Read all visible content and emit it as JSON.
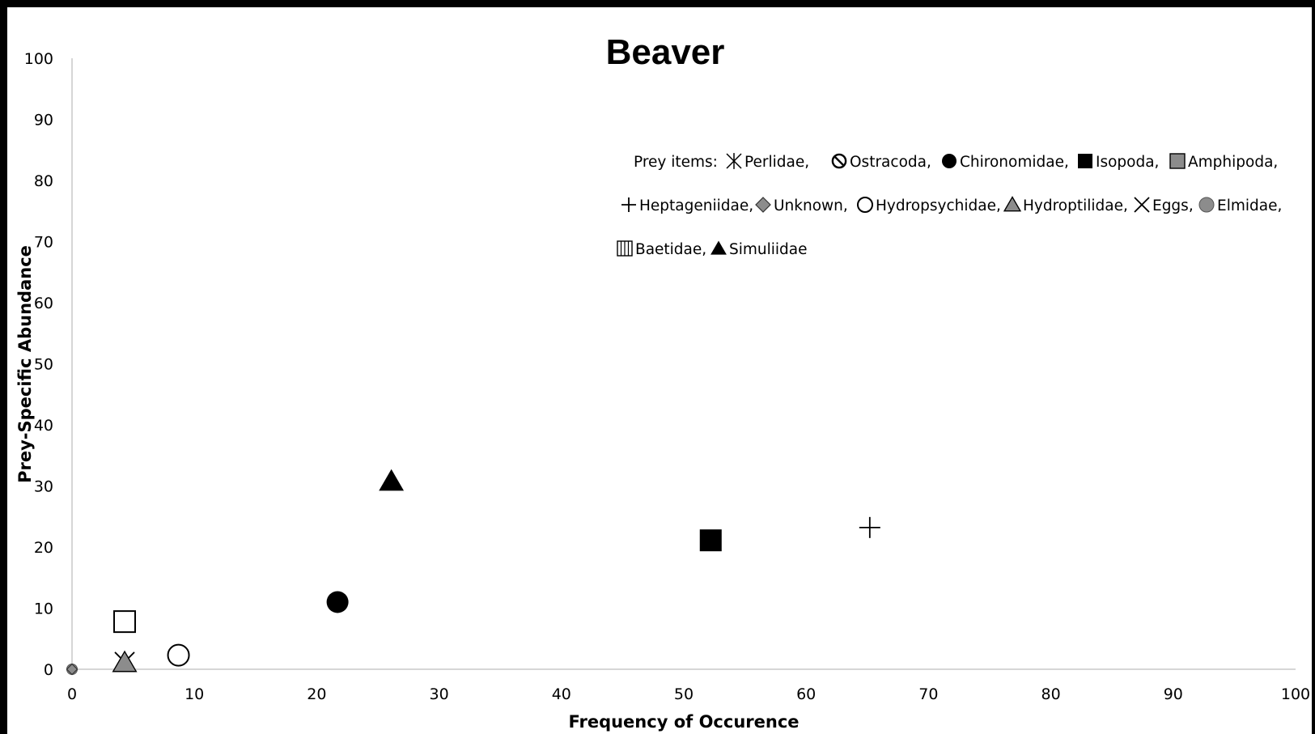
{
  "chart_data": {
    "type": "scatter",
    "title": "Beaver",
    "xlabel": "Frequency of Occurence",
    "ylabel": "Prey-Specific Abundance",
    "xlim": [
      0,
      100
    ],
    "ylim": [
      0,
      100
    ],
    "x_ticks": [
      "0",
      "10",
      "20",
      "30",
      "40",
      "50",
      "60",
      "70",
      "80",
      "90",
      "100"
    ],
    "y_ticks": [
      "0",
      "10",
      "20",
      "30",
      "40",
      "50",
      "60",
      "70",
      "80",
      "90",
      "100"
    ],
    "grid": false,
    "legend": {
      "placement": "top-right",
      "prefix": "Prey items:",
      "entries": [
        {
          "label": "Perlidae,",
          "marker": "asterisk"
        },
        {
          "label": "Ostracoda,",
          "marker": "slashed-circle"
        },
        {
          "label": "Chironomidae,",
          "marker": "filled-circle"
        },
        {
          "label": "Isopoda,",
          "marker": "filled-square"
        },
        {
          "label": "Amphipoda,",
          "marker": "gray-square"
        },
        {
          "label": "Heptageniidae,",
          "marker": "plus"
        },
        {
          "label": "Unknown,",
          "marker": "gray-diamond"
        },
        {
          "label": "Hydropsychidae,",
          "marker": "open-circle"
        },
        {
          "label": "Hydroptilidae,",
          "marker": "gray-triangle"
        },
        {
          "label": "Eggs,",
          "marker": "x"
        },
        {
          "label": "Elmidae,",
          "marker": "gray-circle"
        },
        {
          "label": "Baetidae,",
          "marker": "striped-square"
        },
        {
          "label": "Simuliidae",
          "marker": "filled-triangle"
        }
      ]
    },
    "points": [
      {
        "x": 26.1,
        "y": 30.8,
        "marker": "filled-triangle"
      },
      {
        "x": 52.2,
        "y": 21.1,
        "marker": "filled-square"
      },
      {
        "x": 65.2,
        "y": 23.2,
        "marker": "plus"
      },
      {
        "x": 21.7,
        "y": 11.0,
        "marker": "filled-circle"
      },
      {
        "x": 8.7,
        "y": 2.3,
        "marker": "open-circle"
      },
      {
        "x": 4.3,
        "y": 7.8,
        "marker": "open-square"
      },
      {
        "x": 4.3,
        "y": 1.2,
        "marker": "x"
      },
      {
        "x": 4.3,
        "y": 1.1,
        "marker": "gray-triangle"
      },
      {
        "x": 0.0,
        "y": 0.0,
        "marker": "gray-circle"
      },
      {
        "x": 0.0,
        "y": 0.0,
        "marker": "gray-diamond"
      }
    ]
  }
}
